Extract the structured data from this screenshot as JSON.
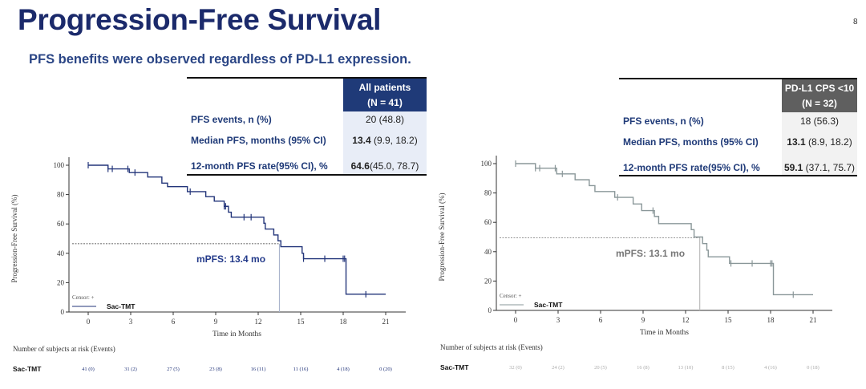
{
  "header": {
    "title": "Progression-Free Survival",
    "subtitle": "PFS benefits were observed regardless of PD-L1 expression.",
    "page_number": "8"
  },
  "colors": {
    "navy": "#1f3a78",
    "gray_header": "#5f5f5f",
    "light_cell": "#e8edf7",
    "curve_left": "#23357a",
    "curve_right": "#8a9799"
  },
  "tables": [
    {
      "header_line1": "All patients",
      "header_line2": "(N = 41)",
      "rows": [
        {
          "label": "PFS events, n (%)",
          "bold": "",
          "rest": "20 (48.8)"
        },
        {
          "label": "Median PFS, months (95% CI)",
          "bold": "13.4",
          "rest": " (9.9, 18.2)"
        },
        {
          "label": "12-month PFS rate(95% CI), %",
          "bold": "64.6",
          "rest": "(45.0, 78.7)"
        }
      ]
    },
    {
      "header_line1": "PD-L1 CPS <10",
      "header_line2": "(N = 32)",
      "rows": [
        {
          "label": "PFS events, n (%)",
          "bold": "",
          "rest": "18 (56.3)"
        },
        {
          "label": "Median PFS, months (95% CI)",
          "bold": "13.1",
          "rest": " (8.9, 18.2)"
        },
        {
          "label": "12-month PFS rate(95% CI),  %",
          "bold": "59.1",
          "rest": " (37.1, 75.7)"
        }
      ]
    }
  ],
  "chart_data": [
    {
      "type": "line",
      "subtype": "kaplan-meier step",
      "xlabel": "Time in Months",
      "ylabel": "Progression-Free Survival (%)",
      "xlim": [
        0,
        21
      ],
      "ylim": [
        0,
        100
      ],
      "xticks": [
        0,
        3,
        6,
        9,
        12,
        15,
        18,
        21
      ],
      "yticks": [
        0,
        20,
        40,
        60,
        80,
        100
      ],
      "legend_censor": "Censor: +",
      "series_name": "Sac-TMT",
      "median_label": "mPFS: 13.4 mo",
      "median_x": 13.5,
      "median_y": 46.5,
      "steps": [
        [
          0,
          100
        ],
        [
          1.4,
          97.5
        ],
        [
          2.9,
          95
        ],
        [
          4.2,
          92
        ],
        [
          5.2,
          87.8
        ],
        [
          5.6,
          85.4
        ],
        [
          7.0,
          82
        ],
        [
          8.3,
          78.6
        ],
        [
          8.9,
          75.5
        ],
        [
          9.6,
          72
        ],
        [
          9.9,
          68
        ],
        [
          10.1,
          64.6
        ],
        [
          12.4,
          60.5
        ],
        [
          12.5,
          56.5
        ],
        [
          13.1,
          52.5
        ],
        [
          13.4,
          48.5
        ],
        [
          13.6,
          44.5
        ],
        [
          15.1,
          40
        ],
        [
          15.2,
          36.3
        ],
        [
          18.2,
          12.1
        ],
        [
          21,
          12.1
        ]
      ],
      "censors": [
        0,
        1.4,
        1.7,
        2.8,
        3.3,
        7.2,
        9.6,
        9.7,
        11.0,
        11.5,
        15.2,
        16.7,
        18.0,
        18.1,
        19.6
      ],
      "risk_title": "Number of subjects at risk (Events)",
      "risk_label": "Sac-TMT",
      "risk": [
        "41 (0)",
        "31 (2)",
        "27 (5)",
        "23 (8)",
        "16 (11)",
        "11 (16)",
        "4 (18)",
        "0 (20)"
      ]
    },
    {
      "type": "line",
      "subtype": "kaplan-meier step",
      "xlabel": "Time in Months",
      "ylabel": "Progression-Free Survival (%)",
      "xlim": [
        0,
        21
      ],
      "ylim": [
        0,
        100
      ],
      "xticks": [
        0,
        3,
        6,
        9,
        12,
        15,
        18,
        21
      ],
      "yticks": [
        0,
        20,
        40,
        60,
        80,
        100
      ],
      "legend_censor": "Censor: +",
      "series_name": "Sac-TMT",
      "median_label": "mPFS: 13.1 mo",
      "median_x": 13.0,
      "median_y": 49.5,
      "steps": [
        [
          0,
          100
        ],
        [
          1.4,
          96.9
        ],
        [
          2.9,
          93
        ],
        [
          4.2,
          89
        ],
        [
          5.2,
          85
        ],
        [
          5.6,
          81
        ],
        [
          7.0,
          77
        ],
        [
          8.3,
          72.5
        ],
        [
          8.9,
          68
        ],
        [
          9.8,
          64
        ],
        [
          10.1,
          59.1
        ],
        [
          12.4,
          55
        ],
        [
          12.6,
          50
        ],
        [
          13.2,
          45.5
        ],
        [
          13.5,
          41
        ],
        [
          13.6,
          36.5
        ],
        [
          15.1,
          32
        ],
        [
          18.2,
          10.7
        ],
        [
          21,
          10.7
        ]
      ],
      "censors": [
        0,
        1.4,
        1.7,
        2.8,
        3.3,
        7.2,
        9.7,
        15.2,
        16.7,
        18.0,
        18.1,
        19.6
      ],
      "risk_title": "Number of subjects at risk (Events)",
      "risk_label": "Sac-TMT",
      "risk": [
        "32 (0)",
        "24 (2)",
        "20 (5)",
        "16 (8)",
        "13 (10)",
        "8 (15)",
        "4 (16)",
        "0 (18)"
      ]
    }
  ]
}
